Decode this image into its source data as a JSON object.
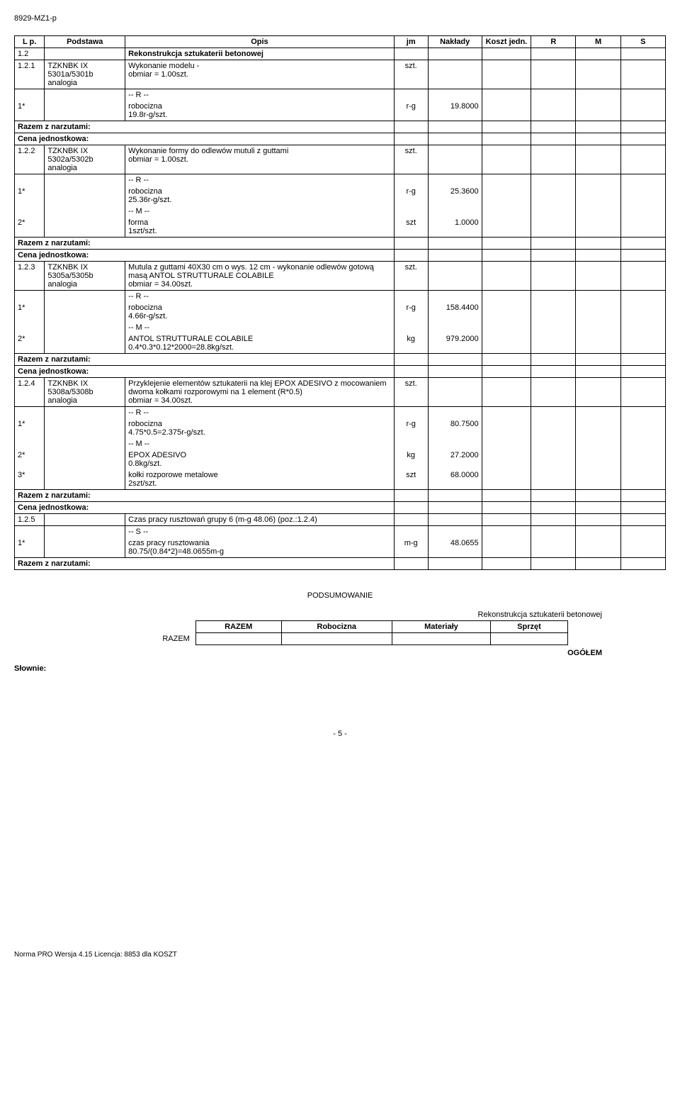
{
  "doc_id": "8929-MZ1-p",
  "headers": {
    "lp": "L p.",
    "podstawa": "Podstawa",
    "opis": "Opis",
    "jm": "jm",
    "naklady": "Nakłady",
    "koszt": "Koszt jedn.",
    "r": "R",
    "m": "M",
    "s": "S"
  },
  "section_num": "1.2",
  "section_title": "Rekonstrukcja sztukaterii betonowej",
  "rows": [
    {
      "lp": "1.2.1",
      "podstawa": "TZKNBK IX 5301a/5301b analogia",
      "opis": "Wykonanie modelu -",
      "obmiar": "obmiar  = 1.00szt.",
      "jm": "szt.",
      "details": [
        {
          "num": "1*",
          "label_prefix": "-- R --",
          "label": "robocizna",
          "calc": "19.8r-g/szt.",
          "jm": "r-g",
          "naklady": "19.8000"
        }
      ]
    },
    {
      "lp": "1.2.2",
      "podstawa": "TZKNBK IX 5302a/5302b analogia",
      "opis": "Wykonanie formy do odlewów mutuli z guttami",
      "obmiar": "obmiar  = 1.00szt.",
      "jm": "szt.",
      "details": [
        {
          "num": "1*",
          "label_prefix": "-- R --",
          "label": "robocizna",
          "calc": "25.36r-g/szt.",
          "jm": "r-g",
          "naklady": "25.3600"
        },
        {
          "num": "2*",
          "label_prefix": "-- M --",
          "label": "forma",
          "calc": "1szt/szt.",
          "jm": "szt",
          "naklady": "1.0000"
        }
      ]
    },
    {
      "lp": "1.2.3",
      "podstawa": "TZKNBK IX 5305a/5305b analogia",
      "opis": "Mutula z guttami 40X30 cm o wys. 12 cm - wykonanie odlewów gotową masą ANTOL STRUTTURALE COLABILE",
      "obmiar": "obmiar  = 34.00szt.",
      "jm": "szt.",
      "details": [
        {
          "num": "1*",
          "label_prefix": "-- R --",
          "label": "robocizna",
          "calc": "4.66r-g/szt.",
          "jm": "r-g",
          "naklady": "158.4400"
        },
        {
          "num": "2*",
          "label_prefix": "-- M --",
          "label": "ANTOL STRUTTURALE COLABILE",
          "calc": "0.4*0.3*0.12*2000=28.8kg/szt.",
          "jm": "kg",
          "naklady": "979.2000"
        }
      ]
    },
    {
      "lp": "1.2.4",
      "podstawa": "TZKNBK IX 5308a/5308b analogia",
      "opis": "Przyklejenie elementów sztukaterii na klej EPOX ADESIVO z mocowaniem dwoma kołkami rozporowymi na 1 element (R*0.5)",
      "obmiar": "obmiar  = 34.00szt.",
      "jm": "szt.",
      "details": [
        {
          "num": "1*",
          "label_prefix": "-- R --",
          "label": "robocizna",
          "calc": "4.75*0.5=2.375r-g/szt.",
          "jm": "r-g",
          "naklady": "80.7500"
        },
        {
          "num": "2*",
          "label_prefix": "-- M --",
          "label": "EPOX ADESIVO",
          "calc": "0.8kg/szt.",
          "jm": "kg",
          "naklady": "27.2000"
        },
        {
          "num": "3*",
          "label_prefix": "",
          "label": "kołki rozporowe metalowe",
          "calc": "2szt/szt.",
          "jm": "szt",
          "naklady": "68.0000"
        }
      ]
    },
    {
      "lp": "1.2.5",
      "podstawa": "",
      "opis": "Czas pracy rusztowań grupy 6 (m-g 48.06) (poz.:1.2.4)",
      "obmiar": "",
      "jm": "",
      "details": [
        {
          "num": "1*",
          "label_prefix": "-- S --",
          "label": "czas pracy rusztowania",
          "calc": "80.75/(0.84*2)=48.0655m-g",
          "jm": "m-g",
          "naklady": "48.0655"
        }
      ],
      "no_cena": true
    }
  ],
  "razem_label": "Razem z narzutami:",
  "cena_label": "Cena jednostkowa:",
  "summary": {
    "title": "PODSUMOWANIE",
    "subtitle": "Rekonstrukcja sztukaterii betonowej",
    "col1": "RAZEM",
    "col2": "Robocizna",
    "col3": "Materiały",
    "col4": "Sprzęt",
    "razem_label": "RAZEM",
    "ogolem": "OGÓŁEM",
    "slownie": "Słownie:"
  },
  "page_num": "- 5 -",
  "footer": "Norma PRO Wersja 4.15 Licencja: 8853 dla KOSZT"
}
